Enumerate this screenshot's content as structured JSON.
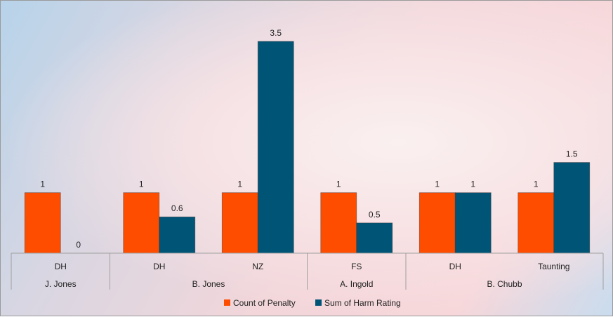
{
  "chart_data": {
    "type": "bar",
    "groups": [
      {
        "name": "J. Jones",
        "categories": [
          "DH"
        ]
      },
      {
        "name": "B. Jones",
        "categories": [
          "DH",
          "NZ"
        ]
      },
      {
        "name": "A. Ingold",
        "categories": [
          "FS"
        ]
      },
      {
        "name": "B. Chubb",
        "categories": [
          "DH",
          "Taunting"
        ]
      }
    ],
    "categories": [
      "DH",
      "DH",
      "NZ",
      "FS",
      "DH",
      "Taunting"
    ],
    "series": [
      {
        "name": "Count of Penalty",
        "color": "#FF4D00",
        "values": [
          1,
          1,
          1,
          1,
          1,
          1
        ],
        "labels": [
          "1",
          "1",
          "1",
          "1",
          "1",
          "1"
        ]
      },
      {
        "name": "Sum of Harm Rating",
        "color": "#005577",
        "values": [
          0,
          0.6,
          3.5,
          0.5,
          1,
          1.5
        ],
        "labels": [
          "0",
          "0.6",
          "3.5",
          "0.5",
          "1",
          "1.5"
        ]
      }
    ],
    "ylim": [
      0,
      3.5
    ],
    "grid": false,
    "legend": "bottom"
  }
}
